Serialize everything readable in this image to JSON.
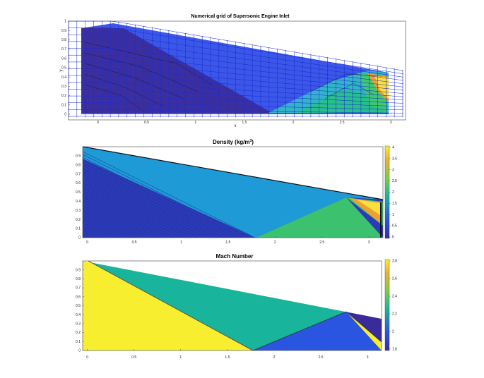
{
  "chart_data": [
    {
      "type": "heatmap",
      "title": "Numerical grid of Supersonic Engine Inlet",
      "xlabel": "x",
      "ylabel": "y",
      "xlim": [
        -0.3,
        3.15
      ],
      "ylim": [
        0,
        1
      ],
      "xticks": [
        "0",
        "0.5",
        "1",
        "1.5",
        "2",
        "2.5",
        "3"
      ],
      "yticks": [
        "0",
        "0.1",
        "0.2",
        "0.3",
        "0.4",
        "0.5",
        "0.6",
        "0.7",
        "0.8",
        "0.9",
        "1"
      ],
      "grid": "structured mesh overlay",
      "colors": {
        "mesh": "#1a2bd6",
        "low": "#3b2fa0",
        "mid": "#2a64e6",
        "teal": "#19b4a0",
        "green": "#3ec96e",
        "yellow": "#f7e040",
        "orange": "#f0a030"
      }
    },
    {
      "type": "heatmap",
      "title": "Density (kg/m",
      "title_superscript": "3",
      "title_tail": ")",
      "xlim": [
        -0.05,
        3.15
      ],
      "ylim": [
        0,
        1
      ],
      "xticks": [
        "0",
        "0.5",
        "1",
        "1.5",
        "2",
        "2.5",
        "3"
      ],
      "yticks": [
        "0",
        "0.1",
        "0.2",
        "0.3",
        "0.4",
        "0.5",
        "0.6",
        "0.7",
        "0.8",
        "0.9"
      ],
      "colorbar_ticks": [
        "0",
        "0.5",
        "1",
        "1.5",
        "2",
        "2.5",
        "3",
        "3.5",
        "4"
      ],
      "colors": {
        "low": "#2b3bb8",
        "mid": "#1e9ad6",
        "green": "#3cc26e",
        "yellow": "#f7e040",
        "orange": "#f0a030"
      }
    },
    {
      "type": "heatmap",
      "title": "Mach Number",
      "xlim": [
        -0.05,
        3.15
      ],
      "ylim": [
        0,
        1
      ],
      "xticks": [
        "0",
        "0.5",
        "1",
        "1.5",
        "2",
        "2.5",
        "3"
      ],
      "yticks": [
        "0",
        "0.1",
        "0.2",
        "0.3",
        "0.4",
        "0.5",
        "0.6",
        "0.7",
        "0.8",
        "0.9"
      ],
      "colorbar_ticks": [
        "1.8",
        "2",
        "2.2",
        "2.4",
        "2.6",
        "2.8"
      ],
      "colors": {
        "high": "#f7ee30",
        "mid": "#18b49c",
        "low": "#2a55e0",
        "lowest": "#3a2a9a"
      }
    }
  ]
}
